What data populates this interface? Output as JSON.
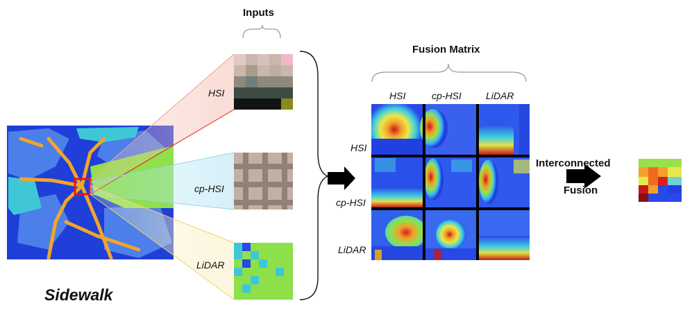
{
  "title_inputs": "Inputs",
  "title_fusion_matrix": "Fusion Matrix",
  "scene_label": "Sidewalk",
  "input_labels": [
    "HSI",
    "cp-HSI",
    "LiDAR"
  ],
  "matrix_col_labels": [
    "HSI",
    "cp-HSI",
    "LiDAR"
  ],
  "matrix_row_labels": [
    "HSI",
    "cp-HSI",
    "LiDAR"
  ],
  "fusion_label_line1": "Interconnected",
  "fusion_label_line2": "Fusion",
  "colors": {
    "hsi_fan": "#f2a08f",
    "cphsi_fan": "#8fd6ee",
    "lidar_fan": "#f6d16a",
    "highlight_box": "#e8141b",
    "arrow": "#000000",
    "road": "#f0a62a",
    "water": "#3fc7d6",
    "ground_dark": "#1f3fd8",
    "ground_light": "#4c7fe9",
    "vegetation": "#8fe04a"
  }
}
